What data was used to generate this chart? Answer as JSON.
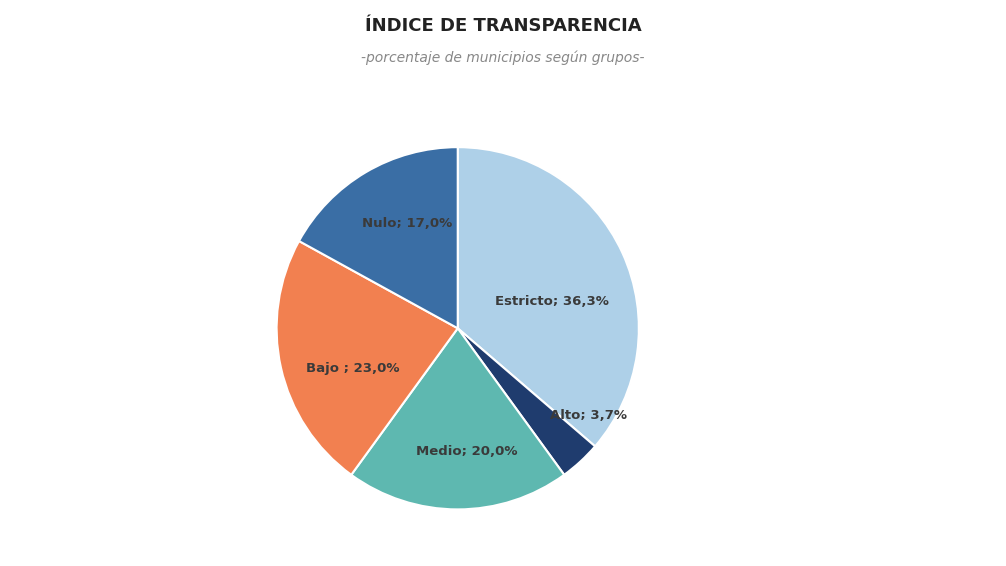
{
  "title": "ÍNDICE DE TRANSPARENCIA",
  "subtitle": "-porcentaje de municipios según grupos-",
  "labels": [
    "Estricto",
    "Alto",
    "Medio",
    "Bajo ",
    "Nulo"
  ],
  "values": [
    36.3,
    3.7,
    20.0,
    23.0,
    17.0
  ],
  "colors": [
    "#aed0e8",
    "#1f3c6e",
    "#5eb8b0",
    "#f28050",
    "#3a6ea5"
  ],
  "title_fontsize": 13,
  "subtitle_fontsize": 10,
  "background_color": "#ffffff",
  "startangle": 90,
  "label_texts": [
    "Estricto; 36,3%",
    "Alto; 3,7%",
    "Medio; 20,0%",
    "Bajo ; 23,0%",
    "Nulo; 17,0%"
  ],
  "label_color": "#3a3a3a",
  "label_fontsize": 9.5,
  "edge_color": "white",
  "edge_linewidth": 1.5
}
